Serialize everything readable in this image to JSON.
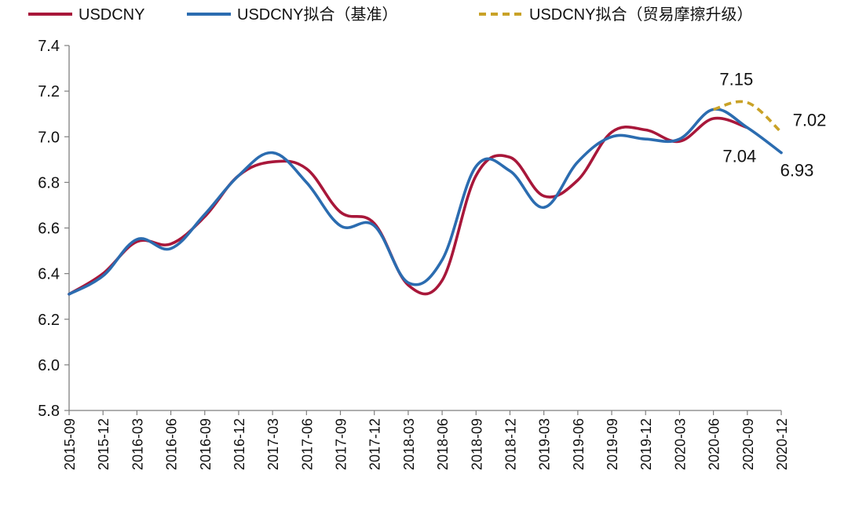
{
  "chart_data": {
    "type": "line",
    "title": "",
    "xlabel": "",
    "ylabel": "",
    "ylim": [
      5.8,
      7.4
    ],
    "y_ticks": [
      "5.8",
      "6.0",
      "6.2",
      "6.4",
      "6.6",
      "6.8",
      "7.0",
      "7.2",
      "7.4"
    ],
    "grid": false,
    "legend_position": "top",
    "categories": [
      "2015-09",
      "2015-12",
      "2016-03",
      "2016-06",
      "2016-09",
      "2016-12",
      "2017-03",
      "2017-06",
      "2017-09",
      "2017-12",
      "2018-03",
      "2018-06",
      "2018-09",
      "2018-12",
      "2019-03",
      "2019-06",
      "2019-09",
      "2019-12",
      "2020-03",
      "2020-06",
      "2020-09",
      "2020-12"
    ],
    "series": [
      {
        "name": "USDCNY",
        "color": "#A8173A",
        "style": "solid",
        "values": [
          6.31,
          6.4,
          6.54,
          6.53,
          6.65,
          6.83,
          6.89,
          6.86,
          6.67,
          6.62,
          6.35,
          6.37,
          6.83,
          6.91,
          6.74,
          6.81,
          7.02,
          7.03,
          6.98,
          7.08,
          7.04,
          null
        ]
      },
      {
        "name": "USDCNY拟合（基准）",
        "color": "#2B6CB0",
        "style": "solid",
        "values": [
          6.31,
          6.39,
          6.55,
          6.51,
          6.66,
          6.83,
          6.93,
          6.8,
          6.61,
          6.61,
          6.36,
          6.46,
          6.87,
          6.85,
          6.69,
          6.89,
          7.0,
          6.99,
          6.99,
          7.12,
          7.04,
          6.93
        ]
      },
      {
        "name": "USDCNY拟合（贸易摩擦升级）",
        "color": "#C9A227",
        "style": "dashed",
        "values": [
          null,
          null,
          null,
          null,
          null,
          null,
          null,
          null,
          null,
          null,
          null,
          null,
          null,
          null,
          null,
          null,
          null,
          null,
          null,
          7.12,
          7.15,
          7.02
        ]
      }
    ],
    "annotations": [
      {
        "text": "7.15",
        "category": "2020-09",
        "value": 7.15
      },
      {
        "text": "7.02",
        "category": "2020-12",
        "value": 7.02
      },
      {
        "text": "7.04",
        "category": "2020-09",
        "value": 7.04
      },
      {
        "text": "6.93",
        "category": "2020-12",
        "value": 6.93
      }
    ]
  }
}
